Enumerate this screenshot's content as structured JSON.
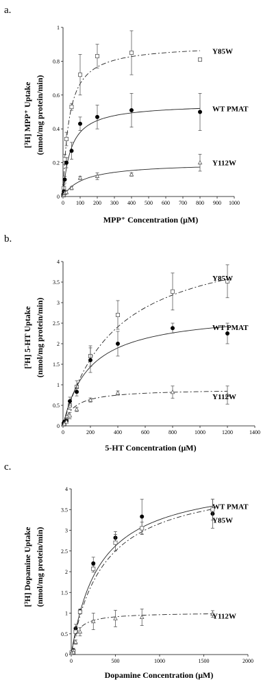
{
  "chart_data": [
    {
      "panel": "a.",
      "type": "scatter",
      "xlabel": "MPP⁺ Concentration (μM)",
      "ylabel_lines": [
        "[³H] MPP⁺ Uptake",
        "(nmol/mg protein/min)"
      ],
      "xlim": [
        0,
        1000
      ],
      "ylim": [
        0,
        1
      ],
      "xticks": [
        0,
        100,
        200,
        300,
        400,
        500,
        600,
        700,
        800,
        900,
        1000
      ],
      "xtick_labels": [
        "0",
        "100",
        "200",
        "300",
        "400",
        "500",
        "600",
        "700",
        "800",
        "900",
        "1000"
      ],
      "yticks": [
        0,
        0.2,
        0.4,
        0.6,
        0.8,
        1
      ],
      "ytick_labels": [
        "0",
        "0.2",
        "0.4",
        "0.6",
        "0.8",
        "1"
      ],
      "series": [
        {
          "name": "Y85W",
          "marker": "square",
          "line": "dashdot",
          "vmax": 0.9,
          "km": 35,
          "label_y": 0.86,
          "points": [
            {
              "x": 2,
              "y": 0.01,
              "err": 0.005
            },
            {
              "x": 5,
              "y": 0.05,
              "err": 0.02
            },
            {
              "x": 10,
              "y": 0.22,
              "err": 0.03
            },
            {
              "x": 20,
              "y": 0.34,
              "err": 0.04
            },
            {
              "x": 50,
              "y": 0.53,
              "err": 0.02
            },
            {
              "x": 100,
              "y": 0.72,
              "err": 0.12
            },
            {
              "x": 200,
              "y": 0.83,
              "err": 0.07
            },
            {
              "x": 400,
              "y": 0.85,
              "err": 0.13
            },
            {
              "x": 800,
              "y": 0.81,
              "err": 0.01
            }
          ]
        },
        {
          "name": "WT PMAT",
          "marker": "filled-circle",
          "line": "solid",
          "vmax": 0.55,
          "km": 45,
          "label_y": 0.52,
          "points": [
            {
              "x": 2,
              "y": 0.01,
              "err": 0.005
            },
            {
              "x": 5,
              "y": 0.03,
              "err": 0.01
            },
            {
              "x": 10,
              "y": 0.1,
              "err": 0.02
            },
            {
              "x": 20,
              "y": 0.2,
              "err": 0.03
            },
            {
              "x": 50,
              "y": 0.27,
              "err": 0.05
            },
            {
              "x": 100,
              "y": 0.43,
              "err": 0.04
            },
            {
              "x": 200,
              "y": 0.47,
              "err": 0.07
            },
            {
              "x": 400,
              "y": 0.51,
              "err": 0.1
            },
            {
              "x": 800,
              "y": 0.5,
              "err": 0.11
            }
          ]
        },
        {
          "name": "Y112W",
          "marker": "triangle",
          "line": "solid",
          "vmax": 0.2,
          "km": 120,
          "label_y": 0.2,
          "points": [
            {
              "x": 2,
              "y": 0.005,
              "err": 0.003
            },
            {
              "x": 5,
              "y": 0.01,
              "err": 0.005
            },
            {
              "x": 10,
              "y": 0.02,
              "err": 0.01
            },
            {
              "x": 20,
              "y": 0.025,
              "err": 0.01
            },
            {
              "x": 50,
              "y": 0.05,
              "err": 0.01
            },
            {
              "x": 100,
              "y": 0.11,
              "err": 0.01
            },
            {
              "x": 200,
              "y": 0.12,
              "err": 0.02
            },
            {
              "x": 400,
              "y": 0.13,
              "err": 0.01
            },
            {
              "x": 800,
              "y": 0.2,
              "err": 0.05
            }
          ]
        }
      ]
    },
    {
      "panel": "b.",
      "type": "scatter",
      "xlabel": "5-HT Concentration (μM)",
      "ylabel_lines": [
        "[³H] 5-HT Uptake",
        "(nmol/mg protein/min)"
      ],
      "xlim": [
        0,
        1400
      ],
      "ylim": [
        0,
        4
      ],
      "xticks": [
        0,
        200,
        400,
        600,
        800,
        1000,
        1200,
        1400
      ],
      "xtick_labels": [
        "0",
        "200",
        "400",
        "600",
        "800",
        "1000",
        "1200",
        "1400"
      ],
      "yticks": [
        0,
        0.5,
        1,
        1.5,
        2,
        2.5,
        3,
        3.5,
        4
      ],
      "ytick_labels": [
        "0",
        "0.5",
        "1",
        "1.5",
        "2",
        "2.5",
        "3",
        "3.5",
        "4"
      ],
      "series": [
        {
          "name": "Y85W",
          "marker": "square",
          "line": "dashdot",
          "vmax": 4.7,
          "km": 380,
          "label_y": 3.6,
          "points": [
            {
              "x": 5,
              "y": 0.05,
              "err": 0.02
            },
            {
              "x": 10,
              "y": 0.08,
              "err": 0.03
            },
            {
              "x": 25,
              "y": 0.15,
              "err": 0.05
            },
            {
              "x": 50,
              "y": 0.5,
              "err": 0.1
            },
            {
              "x": 100,
              "y": 0.95,
              "err": 0.15
            },
            {
              "x": 200,
              "y": 1.7,
              "err": 0.25
            },
            {
              "x": 400,
              "y": 2.7,
              "err": 0.35
            },
            {
              "x": 800,
              "y": 3.27,
              "err": 0.45
            },
            {
              "x": 1200,
              "y": 3.52,
              "err": 0.4
            }
          ]
        },
        {
          "name": "WT PMAT",
          "marker": "filled-circle",
          "line": "solid",
          "vmax": 2.8,
          "km": 190,
          "label_y": 2.4,
          "points": [
            {
              "x": 5,
              "y": 0.05,
              "err": 0.02
            },
            {
              "x": 10,
              "y": 0.1,
              "err": 0.03
            },
            {
              "x": 25,
              "y": 0.12,
              "err": 0.05
            },
            {
              "x": 50,
              "y": 0.6,
              "err": 0.1
            },
            {
              "x": 100,
              "y": 0.83,
              "err": 0.1
            },
            {
              "x": 200,
              "y": 1.6,
              "err": 0.3
            },
            {
              "x": 400,
              "y": 2.0,
              "err": 0.3
            },
            {
              "x": 800,
              "y": 2.38,
              "err": 0.12
            },
            {
              "x": 1200,
              "y": 2.25,
              "err": 0.25
            }
          ]
        },
        {
          "name": "Y112W",
          "marker": "triangle",
          "line": "dashdot",
          "vmax": 0.9,
          "km": 80,
          "label_y": 0.72,
          "points": [
            {
              "x": 5,
              "y": 0.03,
              "err": 0.02
            },
            {
              "x": 10,
              "y": 0.05,
              "err": 0.02
            },
            {
              "x": 25,
              "y": 0.1,
              "err": 0.03
            },
            {
              "x": 50,
              "y": 0.25,
              "err": 0.08
            },
            {
              "x": 100,
              "y": 0.4,
              "err": 0.05
            },
            {
              "x": 200,
              "y": 0.63,
              "err": 0.05
            },
            {
              "x": 400,
              "y": 0.8,
              "err": 0.05
            },
            {
              "x": 800,
              "y": 0.82,
              "err": 0.15
            },
            {
              "x": 1200,
              "y": 0.75,
              "err": 0.22
            }
          ]
        }
      ]
    },
    {
      "panel": "c.",
      "type": "scatter",
      "xlabel": "Dopamine Concentration (μM)",
      "ylabel_lines": [
        "[³H] Dopamine Uptake",
        "(nmol/mg protein/min)"
      ],
      "xlim": [
        0,
        2000
      ],
      "ylim": [
        0,
        4
      ],
      "xticks": [
        0,
        500,
        1000,
        1500,
        2000
      ],
      "xtick_labels": [
        "0",
        "500",
        "1000",
        "1500",
        "2000"
      ],
      "yticks": [
        0,
        0.5,
        1,
        1.5,
        2,
        2.5,
        3,
        3.5,
        4
      ],
      "ytick_labels": [
        "0",
        "0.5",
        "1",
        "1.5",
        "2",
        "2.5",
        "3",
        "3.5",
        "4"
      ],
      "series": [
        {
          "name": "WT PMAT",
          "marker": "filled-circle",
          "line": "solid",
          "vmax": 4.3,
          "km": 320,
          "label_y": 3.58,
          "points": [
            {
              "x": 5,
              "y": 0.05,
              "err": 0.03
            },
            {
              "x": 25,
              "y": 0.1,
              "err": 0.05
            },
            {
              "x": 50,
              "y": 0.63,
              "err": 0.1
            },
            {
              "x": 100,
              "y": 1.05,
              "err": 0.05
            },
            {
              "x": 250,
              "y": 2.2,
              "err": 0.15
            },
            {
              "x": 500,
              "y": 2.82,
              "err": 0.15
            },
            {
              "x": 800,
              "y": 3.33,
              "err": 0.42
            },
            {
              "x": 1600,
              "y": 3.4,
              "err": 0.35
            }
          ]
        },
        {
          "name": "Y85W",
          "marker": "square",
          "line": "dashdot",
          "vmax": 4.3,
          "km": 360,
          "label_y": 3.25,
          "points": [
            {
              "x": 5,
              "y": 0.05,
              "err": 0.03
            },
            {
              "x": 25,
              "y": 0.08,
              "err": 0.04
            },
            {
              "x": 50,
              "y": 0.55,
              "err": 0.1
            },
            {
              "x": 100,
              "y": 1.03,
              "err": 0.05
            },
            {
              "x": 250,
              "y": 2.07,
              "err": 0.08
            },
            {
              "x": 500,
              "y": 2.7,
              "err": 0.2
            },
            {
              "x": 800,
              "y": 3.05,
              "err": 0.15
            },
            {
              "x": 1600,
              "y": 3.5,
              "err": 0.25
            }
          ]
        },
        {
          "name": "Y112W",
          "marker": "triangle",
          "line": "dashdot",
          "vmax": 1.02,
          "km": 60,
          "label_y": 0.93,
          "points": [
            {
              "x": 5,
              "y": 0.03,
              "err": 0.02
            },
            {
              "x": 25,
              "y": 0.05,
              "err": 0.03
            },
            {
              "x": 50,
              "y": 0.3,
              "err": 0.05
            },
            {
              "x": 100,
              "y": 0.55,
              "err": 0.1
            },
            {
              "x": 250,
              "y": 0.8,
              "err": 0.2
            },
            {
              "x": 500,
              "y": 0.87,
              "err": 0.2
            },
            {
              "x": 800,
              "y": 0.9,
              "err": 0.2
            },
            {
              "x": 1600,
              "y": 0.98,
              "err": 0.08
            }
          ]
        }
      ]
    }
  ]
}
